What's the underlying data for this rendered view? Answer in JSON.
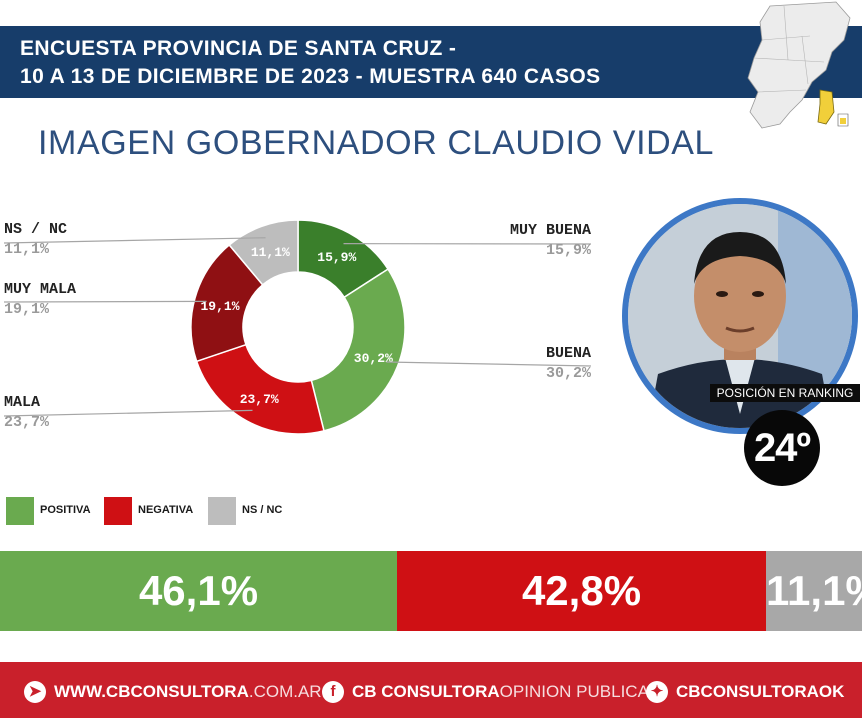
{
  "header": {
    "line1": "ENCUESTA PROVINCIA DE SANTA CRUZ -",
    "line2": "10 A 13 DE DICIEMBRE DE 2023 - MUESTRA 640 CASOS"
  },
  "title": "IMAGEN GOBERNADOR CLAUDIO VIDAL",
  "chart_data": {
    "type": "pie",
    "donut": true,
    "slices": [
      {
        "name": "MUY BUENA",
        "value": 15.9,
        "label": "15,9%",
        "side_value": "15,9%",
        "color": "#3a7f2b"
      },
      {
        "name": "BUENA",
        "value": 30.2,
        "label": "30,2%",
        "side_value": "30,2%",
        "color": "#6aaa4f"
      },
      {
        "name": "MALA",
        "value": 23.7,
        "label": "23,7%",
        "side_value": "23,7%",
        "color": "#cf1014"
      },
      {
        "name": "MUY MALA",
        "value": 19.1,
        "label": "19,1%",
        "side_value": "19,1%",
        "color": "#8f1013"
      },
      {
        "name": "NS / NC",
        "value": 11.1,
        "label": "11,1%",
        "side_value": "11,1%",
        "color": "#bdbdbd"
      }
    ]
  },
  "legend": [
    {
      "label": "POSITIVA",
      "color": "#6aaa4f"
    },
    {
      "label": "NEGATIVA",
      "color": "#cf1014"
    },
    {
      "label": "NS / NC",
      "color": "#bdbdbd"
    }
  ],
  "totals": [
    {
      "value": 46.1,
      "label": "46,1%",
      "color": "#6aaa4f"
    },
    {
      "value": 42.8,
      "label": "42,8%",
      "color": "#cf1014"
    },
    {
      "value": 11.1,
      "label": "11,1%",
      "color": "#a8a8a8"
    }
  ],
  "ranking": {
    "caption": "POSICIÓN EN RANKING",
    "value": "24º"
  },
  "footer": {
    "web_strong": "WWW.CBCONSULTORA",
    "web_light": ".COM.AR",
    "fb_strong": "CB CONSULTORA",
    "fb_light": " OPINION PUBLICA",
    "tw_strong": "CBCONSULTORAOK"
  }
}
